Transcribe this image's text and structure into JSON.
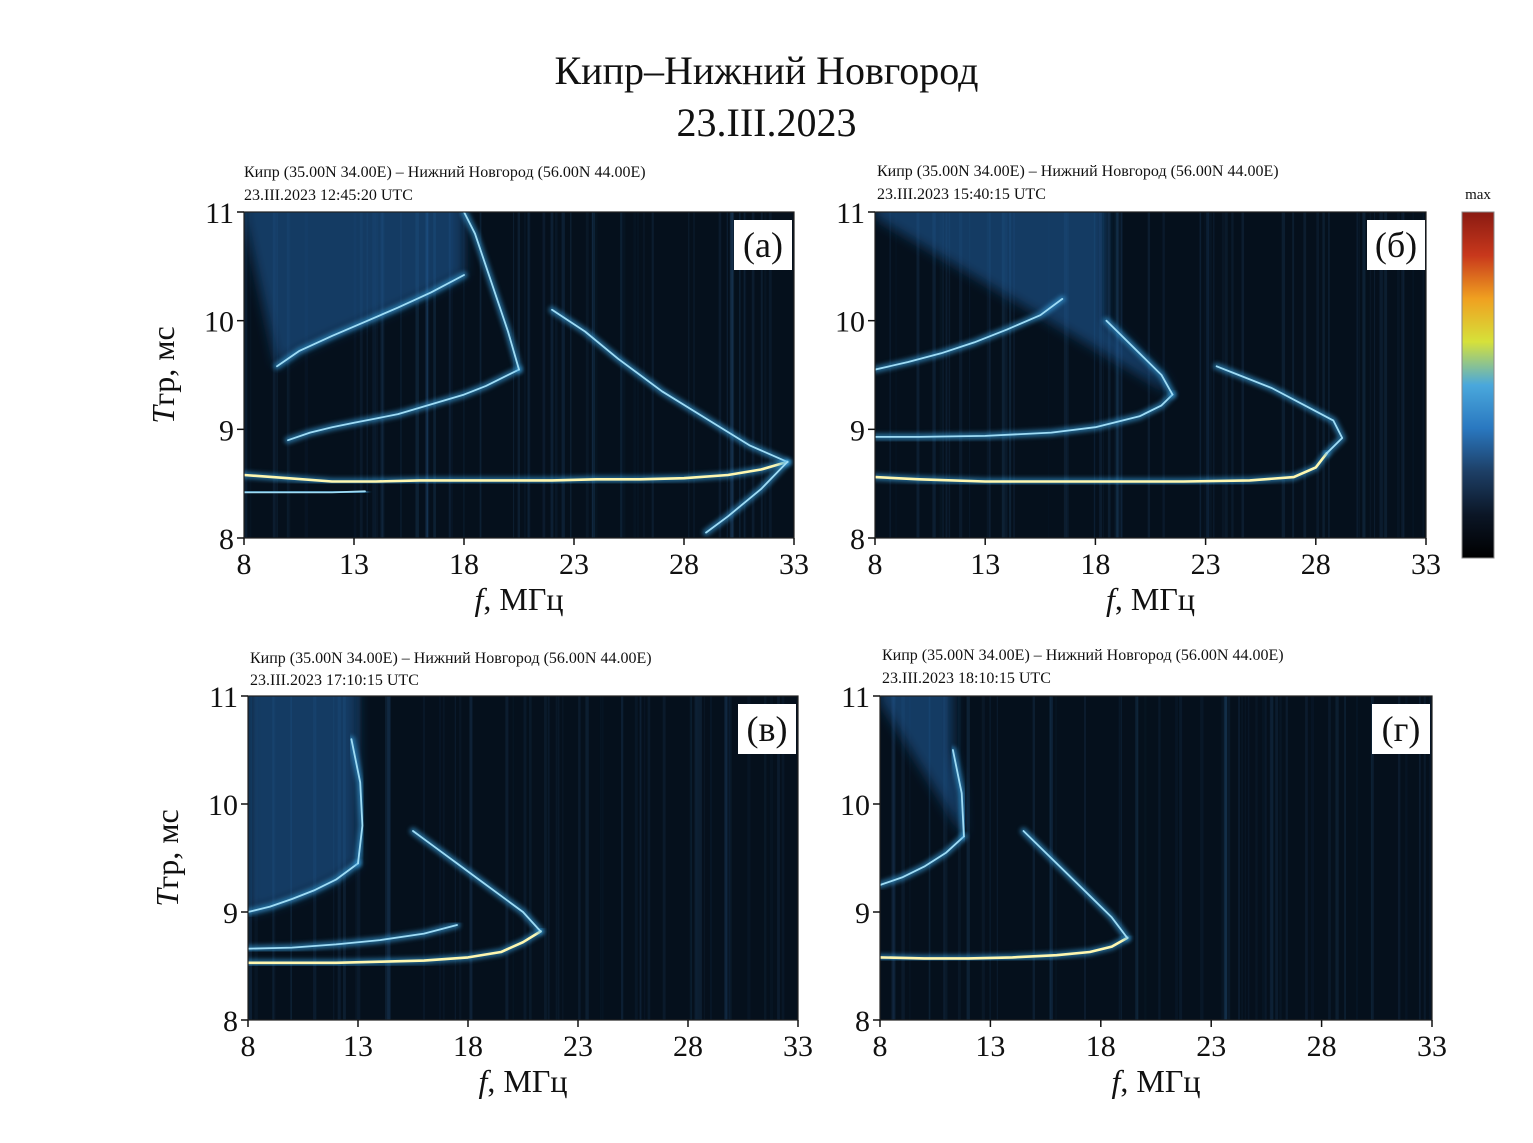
{
  "figure": {
    "title_line1": "Кипр–Нижний Новгород",
    "title_line2": "23.III.2023"
  },
  "colorbar": {
    "label": "max",
    "stops": [
      "#000000",
      "#0b1626",
      "#1d3f66",
      "#2a78c0",
      "#4aa8dc",
      "#d6e13a",
      "#f0a020",
      "#c8381c",
      "#8a1a12"
    ]
  },
  "colors": {
    "background": "#05101c",
    "trace_core": "#fff7b0",
    "trace_glow": "#3aa8e8",
    "diffuse": "#1f5f9e"
  },
  "chart_data": [
    {
      "type": "heatmap",
      "panel_label": "(а)",
      "header_line1": "Кипр (35.00N 34.00E) – Нижний Новгород (56.00N 44.00E)",
      "header_line2": "23.III.2023 12:45:20 UTC",
      "xlabel": "f, МГц",
      "ylabel": "Tгр, мс",
      "xlim": [
        8,
        33
      ],
      "ylim": [
        8,
        11
      ],
      "xticks": [
        8,
        13,
        18,
        23,
        28,
        33
      ],
      "yticks": [
        8,
        9,
        10,
        11
      ],
      "traces": [
        {
          "name": "",
          "x": [
            8,
            10,
            12,
            14,
            16,
            18,
            20,
            22,
            24,
            26,
            28,
            30,
            31.5,
            32.7
          ],
          "y": [
            8.58,
            8.55,
            8.52,
            8.52,
            8.53,
            8.53,
            8.53,
            8.53,
            8.54,
            8.54,
            8.55,
            8.58,
            8.63,
            8.7
          ]
        },
        {
          "name": "",
          "x": [
            32.7,
            31,
            29,
            27,
            25,
            23.5,
            22
          ],
          "y": [
            8.7,
            8.85,
            9.1,
            9.35,
            9.65,
            9.9,
            10.1
          ]
        },
        {
          "name": "",
          "x": [
            10,
            11,
            12,
            13,
            14,
            15,
            16,
            17,
            18,
            19,
            20.5
          ],
          "y": [
            8.9,
            8.97,
            9.02,
            9.06,
            9.1,
            9.14,
            9.2,
            9.26,
            9.32,
            9.4,
            9.55
          ]
        },
        {
          "name": "",
          "x": [
            9.5,
            10.5,
            12,
            13.5,
            15,
            16.5,
            18
          ],
          "y": [
            9.58,
            9.72,
            9.86,
            9.99,
            10.12,
            10.26,
            10.42
          ]
        },
        {
          "name": "",
          "x": [
            20.5,
            20,
            19.5,
            19,
            18.5,
            18
          ],
          "y": [
            9.55,
            9.9,
            10.2,
            10.5,
            10.8,
            11.0
          ]
        },
        {
          "name": "",
          "x": [
            8,
            10,
            12,
            13.5
          ],
          "y": [
            8.42,
            8.42,
            8.42,
            8.43
          ]
        },
        {
          "name": "",
          "x": [
            32.7,
            31.5,
            30,
            29
          ],
          "y": [
            8.7,
            8.45,
            8.2,
            8.05
          ]
        }
      ]
    },
    {
      "type": "heatmap",
      "panel_label": "(б)",
      "header_line1": "Кипр (35.00N 34.00E) – Нижний Новгород (56.00N 44.00E)",
      "header_line2": "23.III.2023 15:40:15 UTC",
      "xlabel": "f, МГц",
      "ylabel": "",
      "xlim": [
        8,
        33
      ],
      "ylim": [
        8,
        11
      ],
      "xticks": [
        8,
        13,
        18,
        23,
        28,
        33
      ],
      "yticks": [
        8,
        9,
        10,
        11
      ],
      "traces": [
        {
          "name": "",
          "x": [
            8,
            10,
            13,
            16,
            19,
            22,
            25,
            27,
            28,
            28.5
          ],
          "y": [
            8.56,
            8.54,
            8.52,
            8.52,
            8.52,
            8.52,
            8.53,
            8.56,
            8.65,
            8.78
          ]
        },
        {
          "name": "",
          "x": [
            28.5,
            29.2,
            28.8,
            27.5,
            26,
            24.5,
            23.5
          ],
          "y": [
            8.78,
            8.92,
            9.08,
            9.22,
            9.38,
            9.5,
            9.58
          ]
        },
        {
          "name": "",
          "x": [
            8,
            10,
            13,
            16,
            18,
            20,
            21,
            21.5
          ],
          "y": [
            8.93,
            8.93,
            8.94,
            8.97,
            9.02,
            9.12,
            9.22,
            9.32
          ]
        },
        {
          "name": "",
          "x": [
            21.5,
            21,
            20,
            19,
            18.5
          ],
          "y": [
            9.32,
            9.5,
            9.7,
            9.9,
            10.0
          ]
        },
        {
          "name": "",
          "x": [
            8,
            9.5,
            11,
            12.5,
            14,
            15.5,
            16.5
          ],
          "y": [
            9.55,
            9.62,
            9.7,
            9.8,
            9.92,
            10.05,
            10.2
          ]
        }
      ]
    },
    {
      "type": "heatmap",
      "panel_label": "(в)",
      "header_line1": "Кипр (35.00N 34.00E) – Нижний Новгород (56.00N 44.00E)",
      "header_line2": "23.III.2023 17:10:15 UTC",
      "xlabel": "f, МГц",
      "ylabel": "Tгр, мс",
      "xlim": [
        8,
        33
      ],
      "ylim": [
        8,
        11
      ],
      "xticks": [
        8,
        13,
        18,
        23,
        28,
        33
      ],
      "yticks": [
        8,
        9,
        10,
        11
      ],
      "traces": [
        {
          "name": "",
          "x": [
            8,
            10,
            12,
            14,
            16,
            18,
            19.5,
            20.5,
            21.3
          ],
          "y": [
            8.53,
            8.53,
            8.53,
            8.54,
            8.55,
            8.58,
            8.63,
            8.72,
            8.82
          ]
        },
        {
          "name": "",
          "x": [
            21.3,
            20.5,
            19.5,
            18.5,
            17.5,
            16.5,
            15.5
          ],
          "y": [
            8.82,
            9.0,
            9.15,
            9.3,
            9.45,
            9.6,
            9.75
          ]
        },
        {
          "name": "",
          "x": [
            8,
            10,
            12,
            14,
            16,
            17.5
          ],
          "y": [
            8.66,
            8.67,
            8.7,
            8.74,
            8.8,
            8.88
          ]
        },
        {
          "name": "",
          "x": [
            8,
            9,
            10,
            11,
            12,
            13
          ],
          "y": [
            9.0,
            9.05,
            9.12,
            9.2,
            9.3,
            9.45
          ]
        },
        {
          "name": "",
          "x": [
            13,
            13.2,
            13.1,
            12.7
          ],
          "y": [
            9.45,
            9.8,
            10.2,
            10.6
          ]
        }
      ]
    },
    {
      "type": "heatmap",
      "panel_label": "(г)",
      "header_line1": "Кипр (35.00N 34.00E) – Нижний Новгород (56.00N 44.00E)",
      "header_line2": "23.III.2023 18:10:15 UTC",
      "xlabel": "f, МГц",
      "ylabel": "",
      "xlim": [
        8,
        33
      ],
      "ylim": [
        8,
        11
      ],
      "xticks": [
        8,
        13,
        18,
        23,
        28,
        33
      ],
      "yticks": [
        8,
        9,
        10,
        11
      ],
      "traces": [
        {
          "name": "",
          "x": [
            8,
            10,
            12,
            14,
            16,
            17.5,
            18.5,
            19.2
          ],
          "y": [
            8.58,
            8.57,
            8.57,
            8.58,
            8.6,
            8.63,
            8.68,
            8.76
          ]
        },
        {
          "name": "",
          "x": [
            19.2,
            18.5,
            17.5,
            16.5,
            15.5,
            14.5
          ],
          "y": [
            8.76,
            8.95,
            9.15,
            9.35,
            9.55,
            9.75
          ]
        },
        {
          "name": "",
          "x": [
            8,
            9,
            10,
            11,
            11.8
          ],
          "y": [
            9.25,
            9.32,
            9.42,
            9.55,
            9.7
          ]
        },
        {
          "name": "",
          "x": [
            11.8,
            11.7,
            11.3
          ],
          "y": [
            9.7,
            10.1,
            10.5
          ]
        }
      ]
    }
  ]
}
